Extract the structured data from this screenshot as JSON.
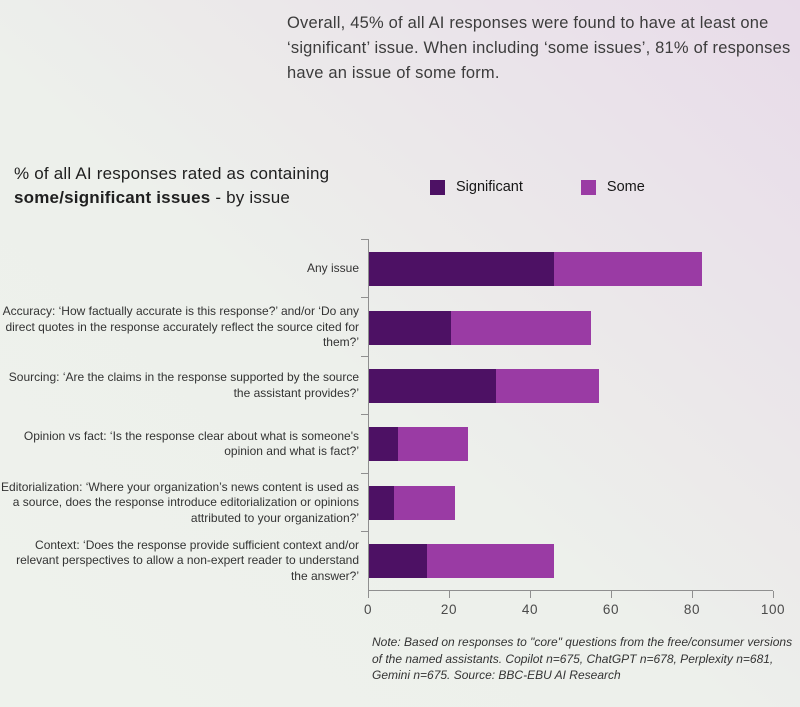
{
  "intro": {
    "text": "Overall, 45% of all AI responses were found to have at least one ‘significant’ issue. When including ‘some issues’, 81% of responses have an issue of some form."
  },
  "chart_header": {
    "line1": "% of all AI responses rated as containing",
    "line2_bold": "some/significant issues",
    "line2_rest": " - by issue"
  },
  "note": {
    "text": "Note: Based on responses to \"core\" questions from the free/consumer versions of the named assistants. Copilot n=675, ChatGPT n=678, Perplexity n=681, Gemini n=675. Source: BBC-EBU AI Research"
  },
  "chart_data": {
    "type": "bar",
    "orientation": "horizontal",
    "stacked": true,
    "title": "% of all AI responses rated as containing some/significant issues - by issue",
    "categories": [
      "Any issue",
      "Accuracy: ‘How factually accurate is this response?’ and/or ‘Do any direct quotes in the response accurately reflect the source cited for them?’",
      "Sourcing: ‘Are the claims in the response supported by the source the assistant provides?’",
      "Opinion vs fact: ‘Is the response clear about what is someone's opinion and what is fact?’",
      "Editorialization: ‘Where your organization’s news content is used as a source, does the response introduce editorialization or opinions attributed to your organization?’",
      "Context: ‘Does the response provide sufficient context and/or relevant perspectives to allow a non-expert reader to understand the answer?’"
    ],
    "series": [
      {
        "name": "Significant",
        "color": "#4d1164",
        "values": [
          45,
          20,
          31,
          7,
          6,
          14
        ]
      },
      {
        "name": "Some",
        "color": "#9a3ba4",
        "values": [
          36,
          34,
          25,
          17,
          15,
          31
        ]
      }
    ],
    "totals": [
      81,
      54,
      56,
      24,
      21,
      45
    ],
    "xlim": [
      0,
      100
    ],
    "x_ticks": [
      0,
      20,
      40,
      60,
      80,
      100
    ],
    "grid": false,
    "legend_position": "top-right"
  }
}
